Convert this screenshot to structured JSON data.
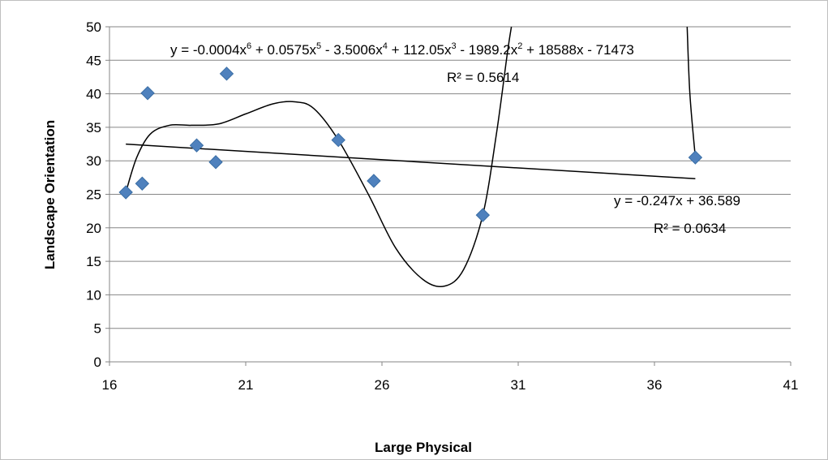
{
  "chart_data": {
    "type": "scatter",
    "title": "",
    "xlabel": "Large Physical",
    "ylabel": "Landscape Orientation",
    "xlim": [
      16,
      41
    ],
    "ylim": [
      0,
      50
    ],
    "x_ticks": [
      "16",
      "21",
      "26",
      "31",
      "36",
      "41"
    ],
    "y_ticks": [
      "0",
      "5",
      "10",
      "15",
      "20",
      "25",
      "30",
      "35",
      "40",
      "45",
      "50"
    ],
    "grid": "horizontal",
    "marker_color": "#4f81bd",
    "points": [
      {
        "x": 16.6,
        "y": 25.3
      },
      {
        "x": 17.2,
        "y": 26.6
      },
      {
        "x": 17.4,
        "y": 40.1
      },
      {
        "x": 19.2,
        "y": 32.3
      },
      {
        "x": 19.9,
        "y": 29.8
      },
      {
        "x": 20.3,
        "y": 43.0
      },
      {
        "x": 24.4,
        "y": 33.1
      },
      {
        "x": 25.7,
        "y": 27.0
      },
      {
        "x": 29.7,
        "y": 21.9
      },
      {
        "x": 37.5,
        "y": 30.5
      }
    ],
    "trendlines": [
      {
        "kind": "linear",
        "slope": -0.247,
        "intercept": 36.589,
        "x_range": [
          16.6,
          37.5
        ],
        "equation_label": "y = -0.247x + 36.589",
        "r2_label": "R² = 0.0634"
      },
      {
        "kind": "polynomial",
        "order": 6,
        "equation_parts": {
          "t1": "y = -0.0004x",
          "t2": " + 0.0575x",
          "t3": " - 3.5006x",
          "t4": " + 112.05x",
          "t5": " - 1989.2x",
          "t6": " + 18588x - 71473",
          "p6": "6",
          "p5": "5",
          "p4": "4",
          "p3": "3",
          "p2": "2"
        },
        "r2_label": "R² = 0.5614",
        "curve": [
          {
            "x": 16.6,
            "y": 25.3
          },
          {
            "x": 17.0,
            "y": 30.5
          },
          {
            "x": 17.5,
            "y": 34.0
          },
          {
            "x": 18.2,
            "y": 35.3
          },
          {
            "x": 19.0,
            "y": 35.3
          },
          {
            "x": 20.0,
            "y": 35.5
          },
          {
            "x": 21.0,
            "y": 37.0
          },
          {
            "x": 22.0,
            "y": 38.5
          },
          {
            "x": 22.8,
            "y": 38.8
          },
          {
            "x": 23.5,
            "y": 37.8
          },
          {
            "x": 24.4,
            "y": 33.1
          },
          {
            "x": 25.5,
            "y": 25.0
          },
          {
            "x": 26.5,
            "y": 17.0
          },
          {
            "x": 27.5,
            "y": 12.3
          },
          {
            "x": 28.3,
            "y": 11.3
          },
          {
            "x": 29.0,
            "y": 13.8
          },
          {
            "x": 29.7,
            "y": 21.9
          },
          {
            "x": 30.2,
            "y": 34.0
          },
          {
            "x": 30.6,
            "y": 46.0
          },
          {
            "x": 30.75,
            "y": 50.0
          }
        ],
        "right_segment": [
          {
            "x": 37.2,
            "y": 50.0
          },
          {
            "x": 37.3,
            "y": 40.0
          },
          {
            "x": 37.5,
            "y": 30.5
          }
        ]
      }
    ]
  }
}
